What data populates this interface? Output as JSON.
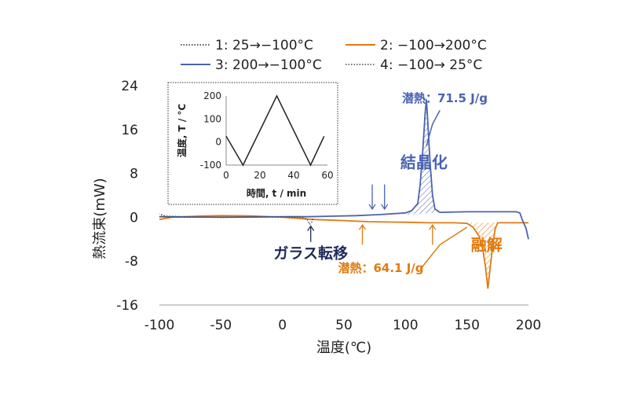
{
  "chart_data": [
    {
      "type": "line",
      "title": "",
      "xlabel": "温度(℃)",
      "ylabel": "熱流束(mW)",
      "xlim": [
        -100,
        200
      ],
      "ylim": [
        -16,
        24
      ],
      "xticks": [
        -100,
        -50,
        0,
        50,
        100,
        150,
        200
      ],
      "yticks": [
        -16,
        -8,
        0,
        8,
        16,
        24
      ],
      "x_tick_labels": [
        "-100",
        "-50",
        "0",
        "50",
        "100",
        "150",
        "200"
      ],
      "y_tick_labels": [
        "-16",
        "-8",
        "0",
        "8",
        "16",
        "24"
      ],
      "grid": false,
      "legend_position": "top",
      "series": [
        {
          "name": "1:   25→−100°C",
          "color": "#222222",
          "style": "dotted",
          "points": [
            [
              25,
              0.1
            ],
            [
              20,
              0.1
            ],
            [
              10,
              0.15
            ],
            [
              0,
              0.1
            ],
            [
              -25,
              0.0
            ],
            [
              -50,
              0.0
            ],
            [
              -75,
              0.1
            ],
            [
              -95,
              0.2
            ],
            [
              -100,
              0.6
            ]
          ]
        },
        {
          "name": "2: −100→200°C",
          "color": "#E07A10",
          "style": "solid",
          "points": [
            [
              -100,
              -0.4
            ],
            [
              -90,
              0.0
            ],
            [
              -70,
              0.2
            ],
            [
              -50,
              0.3
            ],
            [
              -25,
              0.25
            ],
            [
              0,
              0.0
            ],
            [
              25,
              -0.4
            ],
            [
              50,
              -0.6
            ],
            [
              70,
              -0.8
            ],
            [
              100,
              -0.9
            ],
            [
              120,
              -1.0
            ],
            [
              140,
              -1.0
            ],
            [
              150,
              -1.1
            ],
            [
              155,
              -1.8
            ],
            [
              160,
              -3.5
            ],
            [
              163,
              -6
            ],
            [
              165,
              -9
            ],
            [
              167,
              -13
            ],
            [
              169,
              -9
            ],
            [
              171,
              -5
            ],
            [
              173,
              -2
            ],
            [
              175,
              -1.0
            ],
            [
              190,
              -1.0
            ],
            [
              200,
              -1.0
            ]
          ]
        },
        {
          "name": "3: 200→−100°C",
          "color": "#4A63B0",
          "style": "solid",
          "points": [
            [
              200,
              -4
            ],
            [
              198,
              -2
            ],
            [
              195,
              -0.5
            ],
            [
              193,
              0.8
            ],
            [
              190,
              1.0
            ],
            [
              150,
              1.0
            ],
            [
              128,
              0.9
            ],
            [
              124,
              1.5
            ],
            [
              122,
              4
            ],
            [
              120,
              10
            ],
            [
              118,
              18
            ],
            [
              117,
              21.5
            ],
            [
              116,
              19
            ],
            [
              114,
              12
            ],
            [
              112,
              6
            ],
            [
              110,
              2.5
            ],
            [
              105,
              1.2
            ],
            [
              100,
              0.8
            ],
            [
              80,
              0.5
            ],
            [
              60,
              0.3
            ],
            [
              40,
              0.2
            ],
            [
              20,
              0.1
            ],
            [
              0,
              0.1
            ],
            [
              -50,
              0.0
            ],
            [
              -100,
              0.1
            ]
          ]
        },
        {
          "name": "4: −100→  25°C",
          "color": "#444444",
          "style": "dotted",
          "points": [
            [
              -100,
              0.1
            ],
            [
              -50,
              0.0
            ],
            [
              0,
              0.1
            ],
            [
              15,
              0.0
            ],
            [
              20,
              -0.3
            ],
            [
              22,
              -1.3
            ],
            [
              24,
              -0.8
            ],
            [
              25,
              -0.2
            ]
          ]
        }
      ],
      "annotations": [
        {
          "text": "結晶化",
          "color": "#4A63B0",
          "x": 115,
          "y": 9
        },
        {
          "text": "潜熱：71.5 J/g",
          "color": "#4A63B0",
          "x": 132,
          "y": 21
        },
        {
          "text": "融解",
          "color": "#E07A10",
          "x": 166,
          "y": -6
        },
        {
          "text": "潜熱：64.1 J/g",
          "color": "#E07A10",
          "x": 80,
          "y": -10
        },
        {
          "text": "ガラス転移",
          "color": "#1F2A5A",
          "x": 23,
          "y": -7.5
        }
      ],
      "arrows": [
        {
          "color": "#4A63B0",
          "x": 73,
          "direction": "down"
        },
        {
          "color": "#4A63B0",
          "x": 83,
          "direction": "down"
        },
        {
          "color": "#E07A10",
          "x": 65,
          "direction": "up"
        },
        {
          "color": "#E07A10",
          "x": 122,
          "direction": "up"
        },
        {
          "color": "#1F2A5A",
          "x": 23,
          "direction": "up"
        }
      ]
    },
    {
      "type": "line",
      "title": "",
      "xlabel": "時間, t / min",
      "ylabel": "温度, T / °C",
      "xlim": [
        0,
        60
      ],
      "ylim": [
        -100,
        200
      ],
      "xticks": [
        0,
        20,
        40,
        60
      ],
      "yticks": [
        -100,
        0,
        100,
        200
      ],
      "x_tick_labels": [
        "0",
        "20",
        "40",
        "60"
      ],
      "y_tick_labels": [
        "-100",
        "0",
        "100",
        "200"
      ],
      "grid": false,
      "series": [
        {
          "color": "#222222",
          "points": [
            [
              0,
              25
            ],
            [
              10,
              -100
            ],
            [
              30,
              200
            ],
            [
              50,
              -100
            ],
            [
              58,
              25
            ]
          ]
        }
      ]
    }
  ]
}
